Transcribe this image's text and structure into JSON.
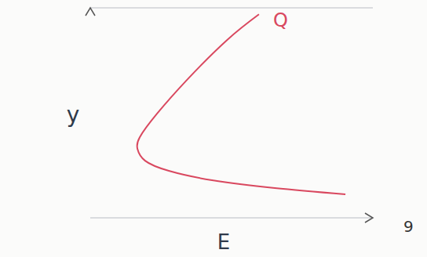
{
  "chart_data": {
    "type": "line",
    "x_label": "E",
    "y_label": "y",
    "annotations": [
      "Q",
      "9"
    ],
    "x": [
      5.97,
      4.86,
      3.47,
      2.36,
      1.75,
      1.67,
      1.94,
      2.78,
      4.31,
      6.53,
      9.03
    ],
    "values": [
      10.66,
      9.34,
      7.3,
      5.45,
      4.22,
      3.61,
      2.99,
      2.46,
      1.97,
      1.56,
      1.23
    ],
    "color": "#d9485f",
    "xlim": [
      0,
      10
    ],
    "ylim": [
      0,
      11
    ],
    "yticks": [
      2.6,
      5,
      7.4,
      9.8
    ],
    "grid": true,
    "tick_labels": false
  }
}
